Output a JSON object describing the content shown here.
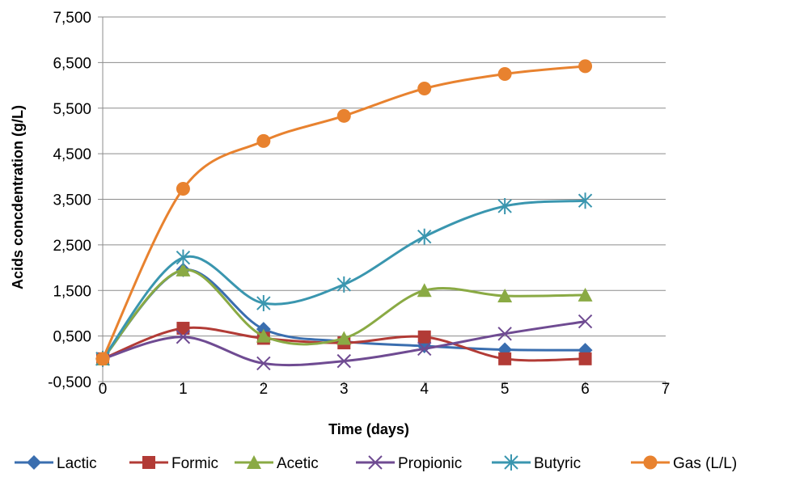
{
  "chart_data": {
    "type": "line",
    "title": "",
    "xlabel": "Time (days)",
    "ylabel": "Acids concdentration (g/L)",
    "xlim": [
      0,
      7
    ],
    "ylim": [
      -0.5,
      7.5
    ],
    "x_ticks": [
      "0",
      "1",
      "2",
      "3",
      "4",
      "5",
      "6",
      "7"
    ],
    "y_ticks": [
      "-0,500",
      "0,500",
      "1,500",
      "2,500",
      "3,500",
      "4,500",
      "5,500",
      "6,500",
      "7,500"
    ],
    "grid": "horizontal",
    "legend_position": "bottom",
    "x": [
      0,
      1,
      2,
      3,
      4,
      5,
      6
    ],
    "series": [
      {
        "name": "Lactic",
        "color": "#3A6EAF",
        "marker": "diamond",
        "values": [
          0.0,
          1.95,
          0.65,
          0.38,
          0.28,
          0.2,
          0.19
        ]
      },
      {
        "name": "Formic",
        "color": "#B23B36",
        "marker": "square",
        "values": [
          0.0,
          0.67,
          0.45,
          0.35,
          0.48,
          0.0,
          0.0
        ]
      },
      {
        "name": "Acetic",
        "color": "#8AAA44",
        "marker": "triangle",
        "values": [
          0.0,
          1.95,
          0.5,
          0.45,
          1.5,
          1.38,
          1.4
        ]
      },
      {
        "name": "Propionic",
        "color": "#6F4B92",
        "marker": "x",
        "values": [
          0.0,
          0.48,
          -0.1,
          -0.05,
          0.22,
          0.55,
          0.82
        ]
      },
      {
        "name": "Butyric",
        "color": "#3A96AF",
        "marker": "asterisk",
        "values": [
          0.0,
          2.22,
          1.22,
          1.63,
          2.68,
          3.35,
          3.47
        ]
      },
      {
        "name": "Gas (L/L)",
        "color": "#E8822F",
        "marker": "circle",
        "values": [
          0.0,
          3.73,
          4.78,
          5.33,
          5.93,
          6.25,
          6.42
        ]
      }
    ]
  }
}
